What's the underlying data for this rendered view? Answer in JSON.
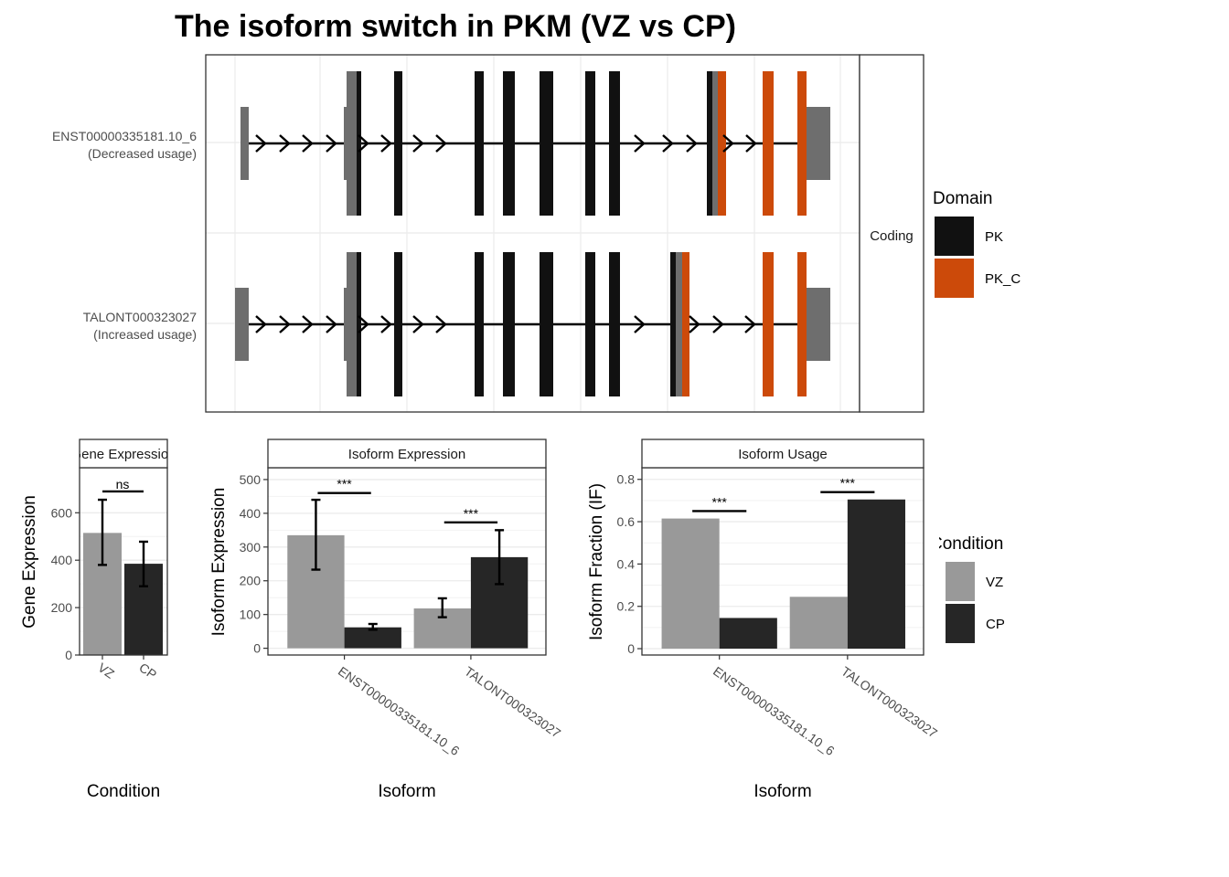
{
  "title": "The isoform switch in PKM (VZ vs CP)",
  "colors": {
    "pk": "#111111",
    "pk_c": "#cc4a0a",
    "utr": "#6e6e6e",
    "vz": "#999999",
    "cp": "#262626",
    "grid": "#ebebeb",
    "panel_border": "#333333"
  },
  "chart_data": [
    {
      "type": "gene-structure",
      "isoforms": [
        {
          "id": "ENST00000335181.10_6",
          "label_line1": "ENST00000335181.10_6",
          "label_line2": "(Decreased usage)"
        },
        {
          "id": "TALONT000323027",
          "label_line1": "TALONT000323027",
          "label_line2": "(Increased usage)"
        }
      ],
      "facet_label": "Coding",
      "legend": {
        "title": "Domain",
        "entries": [
          "PK",
          "PK_C"
        ]
      }
    },
    {
      "type": "bar",
      "strip_label": "Gene Expression",
      "ylabel": "Gene Expression",
      "xlabel": "Condition",
      "categories": [
        "VZ",
        "CP"
      ],
      "values": [
        515,
        385
      ],
      "errors": [
        [
          380,
          655
        ],
        [
          290,
          478
        ]
      ],
      "ylim": [
        0,
        790
      ],
      "yticks": [
        0,
        200,
        400,
        600
      ],
      "significance": [
        {
          "label": "ns",
          "y": 690
        }
      ]
    },
    {
      "type": "bar",
      "strip_label": "Isoform Expression",
      "ylabel": "Isoform Expression",
      "xlabel": "Isoform",
      "categories": [
        "ENST00000335181.10_6",
        "TALONT000323027"
      ],
      "series": [
        {
          "name": "VZ",
          "values": [
            335,
            118
          ],
          "errors": [
            [
              233,
              440
            ],
            [
              92,
              148
            ]
          ]
        },
        {
          "name": "CP",
          "values": [
            62,
            270
          ],
          "errors": [
            [
              55,
              72
            ],
            [
              190,
              350
            ]
          ]
        }
      ],
      "ylim": [
        -20,
        535
      ],
      "yticks": [
        0,
        100,
        200,
        300,
        400,
        500
      ],
      "significance": [
        {
          "label": "***",
          "y": 460
        },
        {
          "label": "***",
          "y": 373
        }
      ]
    },
    {
      "type": "bar",
      "strip_label": "Isoform Usage",
      "ylabel": "Isoform Fraction (IF)",
      "xlabel": "Isoform",
      "categories": [
        "ENST00000335181.10_6",
        "TALONT000323027"
      ],
      "series": [
        {
          "name": "VZ",
          "values": [
            0.615,
            0.245
          ]
        },
        {
          "name": "CP",
          "values": [
            0.145,
            0.705
          ]
        }
      ],
      "ylim": [
        -0.03,
        0.855
      ],
      "yticks": [
        0.0,
        0.2,
        0.4,
        0.6,
        0.8
      ],
      "significance": [
        {
          "label": "***",
          "y": 0.65
        },
        {
          "label": "***",
          "y": 0.74
        }
      ]
    }
  ],
  "legend_condition": {
    "title": "Condition",
    "entries": [
      "VZ",
      "CP"
    ]
  }
}
